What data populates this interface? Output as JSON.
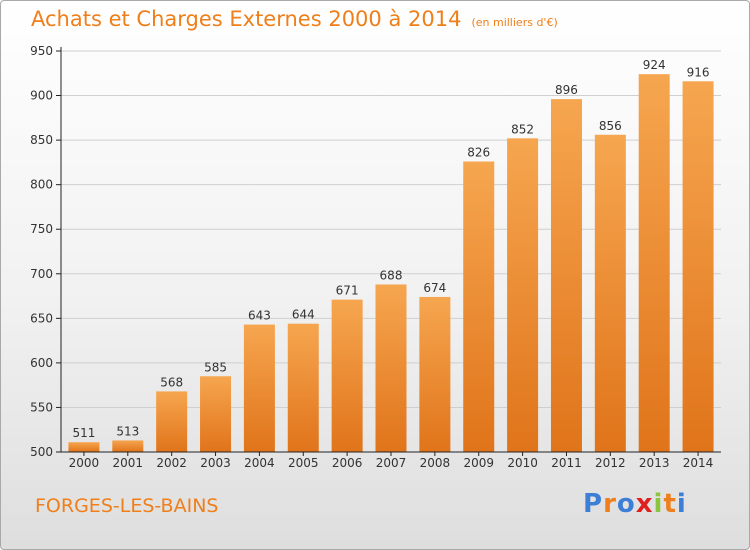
{
  "header": {
    "title": "Achats et Charges Externes 2000 à 2014",
    "unit": "(en milliers d'€)"
  },
  "footer": {
    "commune": "FORGES-LES-BAINS",
    "logo_text": "Proxiti",
    "logo_colors": [
      "#3d7fd6",
      "#ef7f1a",
      "#3d7fd6",
      "#e02020",
      "#8bc53f",
      "#ef7f1a",
      "#3d7fd6"
    ]
  },
  "colors": {
    "accent": "#ef7f1a",
    "bar_light": "#f6a650",
    "bar_dark": "#e0741a",
    "grid": "#cfcfcf",
    "axis": "#222222"
  },
  "chart_data": {
    "type": "bar",
    "title": "Achats et Charges Externes 2000 à 2014",
    "subtitle": "(en milliers d'€)",
    "xlabel": "",
    "ylabel": "",
    "categories": [
      "2000",
      "2001",
      "2002",
      "2003",
      "2004",
      "2005",
      "2006",
      "2007",
      "2008",
      "2009",
      "2010",
      "2011",
      "2012",
      "2013",
      "2014"
    ],
    "values": [
      511,
      513,
      568,
      585,
      643,
      644,
      671,
      688,
      674,
      826,
      852,
      896,
      856,
      924,
      916
    ],
    "ylim": [
      500,
      950
    ],
    "yticks": [
      500,
      550,
      600,
      650,
      700,
      750,
      800,
      850,
      900,
      950
    ],
    "grid": true,
    "legend": "none"
  }
}
